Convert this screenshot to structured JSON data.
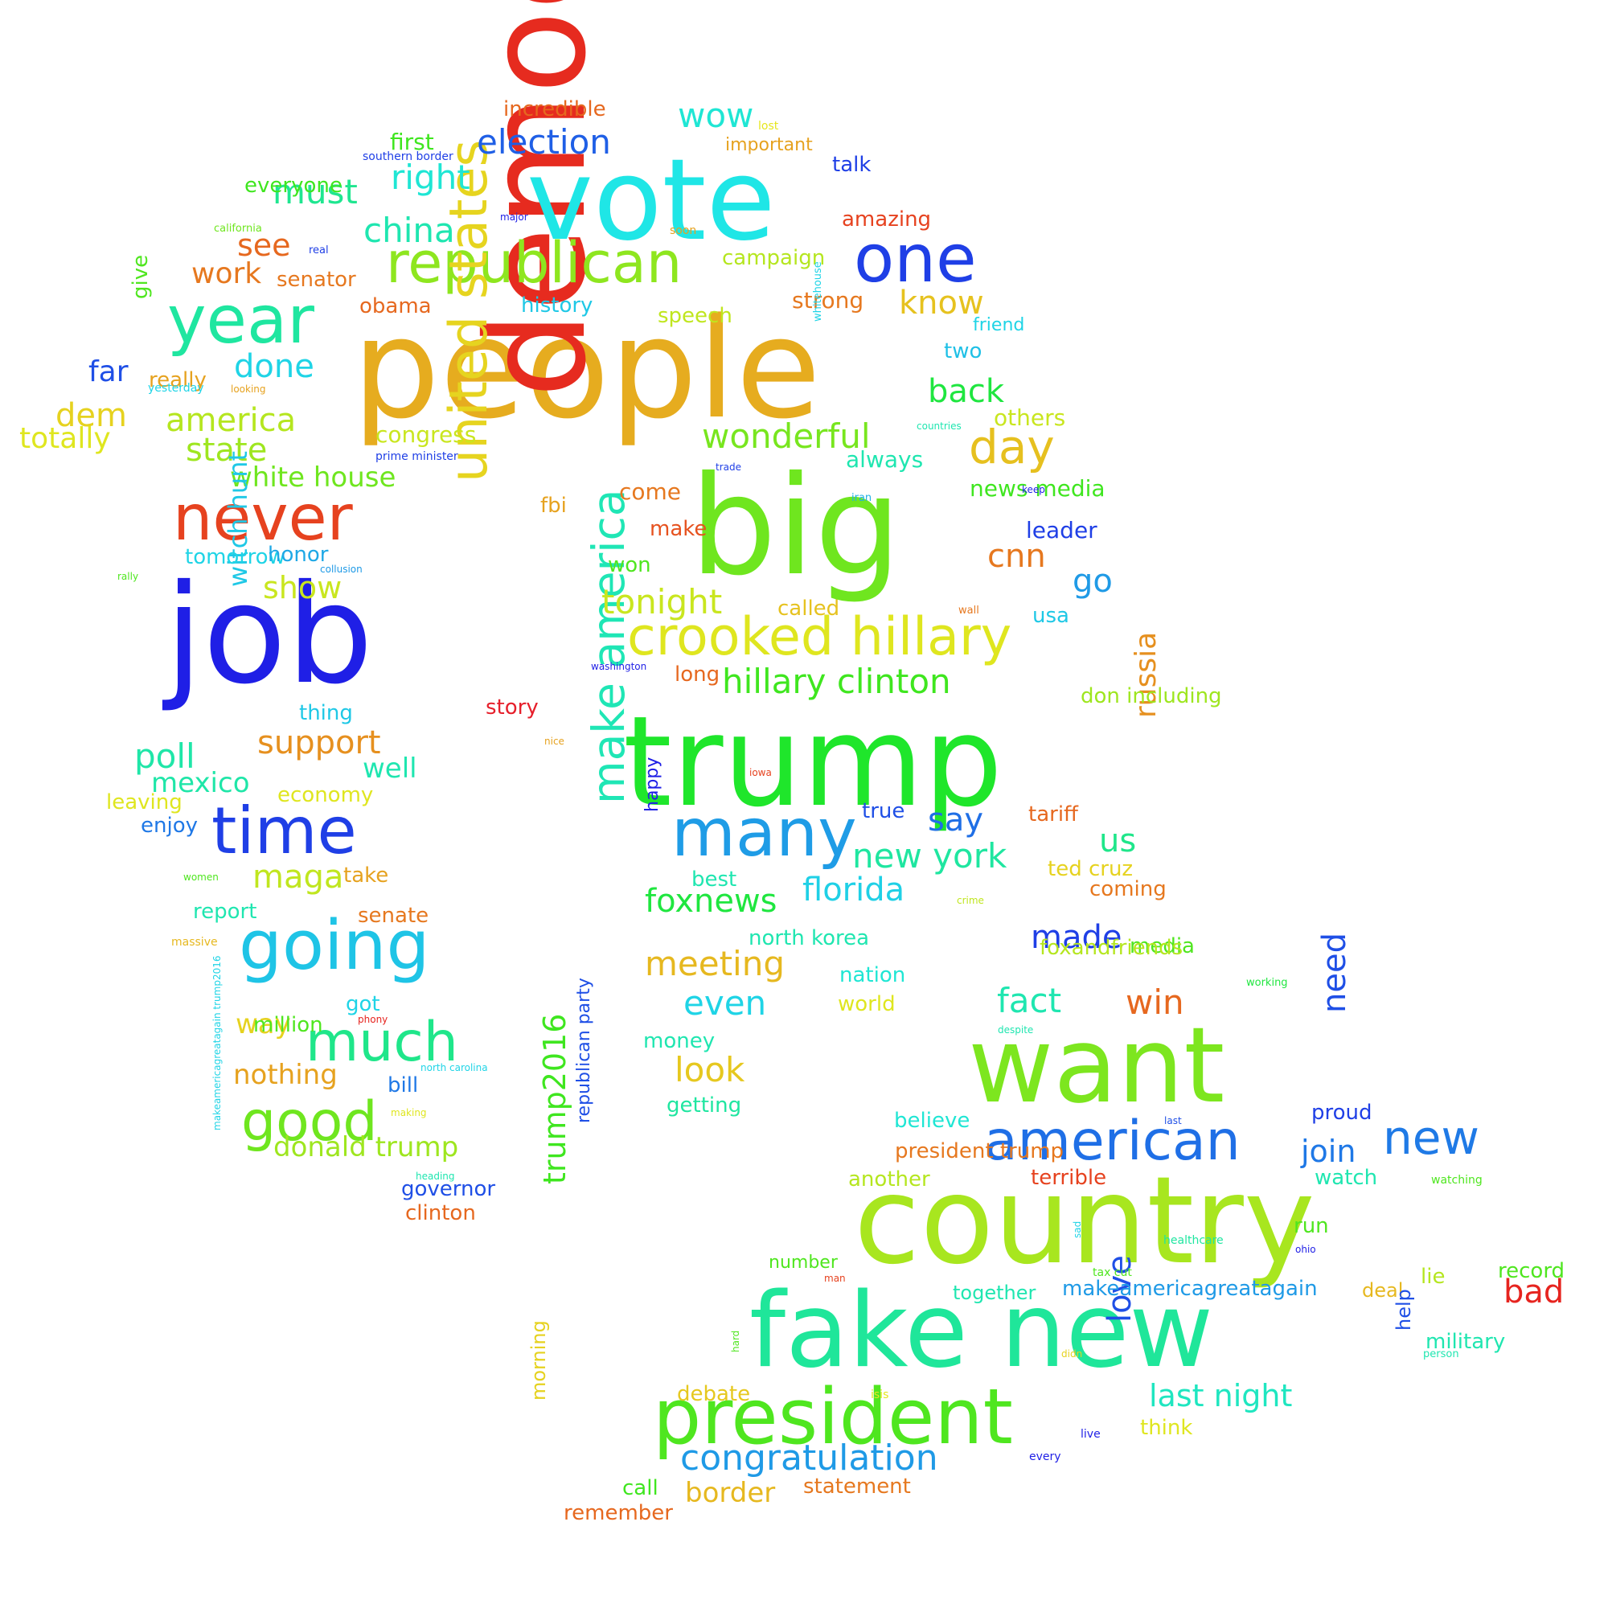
{
  "words": [
    {
      "text": "people",
      "color": "#e6ac1f"
    },
    {
      "text": "democrat",
      "color": "#e62b1f"
    },
    {
      "text": "job",
      "color": "#1f1fe6"
    },
    {
      "text": "big",
      "color": "#6fe61f"
    },
    {
      "text": "trump",
      "color": "#1fe62b"
    },
    {
      "text": "vote",
      "color": "#1fe6e6"
    },
    {
      "text": "country",
      "color": "#a8e61f"
    },
    {
      "text": "want",
      "color": "#7de61f"
    },
    {
      "text": "fake new",
      "color": "#1fe69a"
    },
    {
      "text": "president",
      "color": "#4fe61f"
    },
    {
      "text": "one",
      "color": "#1f3fe6"
    },
    {
      "text": "year",
      "color": "#1fe6a0"
    },
    {
      "text": "republican",
      "color": "#8ee61f"
    },
    {
      "text": "never",
      "color": "#e6421f"
    },
    {
      "text": "time",
      "color": "#1f3fe6"
    },
    {
      "text": "going",
      "color": "#1fc4e6"
    },
    {
      "text": "many",
      "color": "#1f9ce6"
    },
    {
      "text": "united states",
      "color": "#e6d41f"
    },
    {
      "text": "crooked hillary",
      "color": "#dfe61f"
    },
    {
      "text": "make america",
      "color": "#1fe6b5"
    },
    {
      "text": "american",
      "color": "#1f6fe6"
    },
    {
      "text": "new",
      "color": "#1f7ae6"
    },
    {
      "text": "much",
      "color": "#1fe68a"
    },
    {
      "text": "good",
      "color": "#6fe61f"
    },
    {
      "text": "election",
      "color": "#1f5fe6"
    },
    {
      "text": "day",
      "color": "#e6c01f"
    },
    {
      "text": "china",
      "color": "#1fe6b0"
    },
    {
      "text": "wonderful",
      "color": "#78e61f"
    },
    {
      "text": "hillary clinton",
      "color": "#3fe61f"
    },
    {
      "text": "tonight",
      "color": "#c9e61f"
    },
    {
      "text": "congratulation",
      "color": "#1f9ae6"
    },
    {
      "text": "foxnews",
      "color": "#1fe63f"
    },
    {
      "text": "florida",
      "color": "#1fd0e6"
    },
    {
      "text": "new york",
      "color": "#1fe6a0"
    },
    {
      "text": "meeting",
      "color": "#e6b81f"
    },
    {
      "text": "wow",
      "color": "#1fe6d4"
    },
    {
      "text": "right",
      "color": "#1fe6d4"
    },
    {
      "text": "must",
      "color": "#1fe690"
    },
    {
      "text": "america",
      "color": "#b5e61f"
    },
    {
      "text": "state",
      "color": "#9ee61f"
    },
    {
      "text": "white house",
      "color": "#6fe61f"
    },
    {
      "text": "back",
      "color": "#1fe640"
    },
    {
      "text": "know",
      "color": "#e6c21f"
    },
    {
      "text": "done",
      "color": "#1fd4e6"
    },
    {
      "text": "dem",
      "color": "#e6d21f"
    },
    {
      "text": "totally",
      "color": "#dfe61f"
    },
    {
      "text": "see",
      "color": "#e6681f"
    },
    {
      "text": "work",
      "color": "#e6781f"
    },
    {
      "text": "far",
      "color": "#1f4fe6"
    },
    {
      "text": "witch hunt",
      "color": "#1fc8e6"
    },
    {
      "text": "support",
      "color": "#e6901f"
    },
    {
      "text": "poll",
      "color": "#1fe6a8"
    },
    {
      "text": "show",
      "color": "#c9e61f"
    },
    {
      "text": "cnn",
      "color": "#e6781f"
    },
    {
      "text": "go",
      "color": "#1f9ae6"
    },
    {
      "text": "trump2016",
      "color": "#3fe61f"
    },
    {
      "text": "russia",
      "color": "#e6901f"
    },
    {
      "text": "fact",
      "color": "#1fe6b0"
    },
    {
      "text": "win",
      "color": "#e6681f"
    },
    {
      "text": "need",
      "color": "#1f4fe6"
    },
    {
      "text": "love",
      "color": "#1f4fe6"
    },
    {
      "text": "last night",
      "color": "#1fe6c0"
    },
    {
      "text": "even",
      "color": "#1fd4e6"
    },
    {
      "text": "look",
      "color": "#e6c81f"
    },
    {
      "text": "say",
      "color": "#1f6fe6"
    },
    {
      "text": "us",
      "color": "#1fe68a"
    },
    {
      "text": "made",
      "color": "#1f3fe6"
    },
    {
      "text": "join",
      "color": "#1f78e6"
    },
    {
      "text": "bad",
      "color": "#e6241f"
    },
    {
      "text": "maga",
      "color": "#c0e61f"
    },
    {
      "text": "mexico",
      "color": "#1fe6a8"
    },
    {
      "text": "well",
      "color": "#1fe6b0"
    },
    {
      "text": "donald trump",
      "color": "#9ee61f"
    },
    {
      "text": "nothing",
      "color": "#e6a21f"
    },
    {
      "text": "way",
      "color": "#e6d21f"
    },
    {
      "text": "border",
      "color": "#e6b81f"
    },
    {
      "text": "incredible",
      "color": "#e6681f"
    },
    {
      "text": "first",
      "color": "#3fe61f"
    },
    {
      "text": "important",
      "color": "#e6a21f"
    },
    {
      "text": "talk",
      "color": "#1f3fe6"
    },
    {
      "text": "amazing",
      "color": "#e6421f"
    },
    {
      "text": "campaign",
      "color": "#b5e61f"
    },
    {
      "text": "everyone",
      "color": "#3fe61f"
    },
    {
      "text": "senator",
      "color": "#e6781f"
    },
    {
      "text": "obama",
      "color": "#e6681f"
    },
    {
      "text": "history",
      "color": "#1fc8e6"
    },
    {
      "text": "speech",
      "color": "#c0e61f"
    },
    {
      "text": "strong",
      "color": "#e6781f"
    },
    {
      "text": "friend",
      "color": "#1fd4e6"
    },
    {
      "text": "two",
      "color": "#1fc0e6"
    },
    {
      "text": "give",
      "color": "#4fe61f"
    },
    {
      "text": "really",
      "color": "#e6a21f"
    },
    {
      "text": "yesterday",
      "color": "#1fd4e6"
    },
    {
      "text": "congress",
      "color": "#c9e61f"
    },
    {
      "text": "always",
      "color": "#1fe6b0"
    },
    {
      "text": "others",
      "color": "#c9e61f"
    },
    {
      "text": "come",
      "color": "#e6781f"
    },
    {
      "text": "news media",
      "color": "#3fe61f"
    },
    {
      "text": "fbi",
      "color": "#e6a21f"
    },
    {
      "text": "make",
      "color": "#e6521f"
    },
    {
      "text": "leader",
      "color": "#1f3fe6"
    },
    {
      "text": "tomorrow",
      "color": "#1fd4e6"
    },
    {
      "text": "honor",
      "color": "#1fa8e6"
    },
    {
      "text": "won",
      "color": "#4fe61f"
    },
    {
      "text": "called",
      "color": "#e6c21f"
    },
    {
      "text": "usa",
      "color": "#1fc8e6"
    },
    {
      "text": "long",
      "color": "#e6681f"
    },
    {
      "text": "don including",
      "color": "#9ee61f"
    },
    {
      "text": "story",
      "color": "#e61f2b"
    },
    {
      "text": "thing",
      "color": "#1fc8e6"
    },
    {
      "text": "economy",
      "color": "#dfe61f"
    },
    {
      "text": "leaving",
      "color": "#dfe61f"
    },
    {
      "text": "enjoy",
      "color": "#1f78e6"
    },
    {
      "text": "true",
      "color": "#1f4fe6"
    },
    {
      "text": "tariff",
      "color": "#e6681f"
    },
    {
      "text": "happy",
      "color": "#1f1fe6"
    },
    {
      "text": "best",
      "color": "#1fe6b0"
    },
    {
      "text": "ted cruz",
      "color": "#e6d21f"
    },
    {
      "text": "coming",
      "color": "#e6781f"
    },
    {
      "text": "take",
      "color": "#e6a21f"
    },
    {
      "text": "report",
      "color": "#1fe6b0"
    },
    {
      "text": "senate",
      "color": "#e6781f"
    },
    {
      "text": "north korea",
      "color": "#1fe6b0"
    },
    {
      "text": "nation",
      "color": "#1fe6d4"
    },
    {
      "text": "media",
      "color": "#4fe61f"
    },
    {
      "text": "foxandfriends",
      "color": "#b5e61f"
    },
    {
      "text": "world",
      "color": "#dfe61f"
    },
    {
      "text": "got",
      "color": "#1fd4e6"
    },
    {
      "text": "million",
      "color": "#4fe61f"
    },
    {
      "text": "money",
      "color": "#1fe6b0"
    },
    {
      "text": "bill",
      "color": "#1f78e6"
    },
    {
      "text": "getting",
      "color": "#1fe6a0"
    },
    {
      "text": "believe",
      "color": "#1fe6d4"
    },
    {
      "text": "proud",
      "color": "#1f3fe6"
    },
    {
      "text": "president trump",
      "color": "#e6781f"
    },
    {
      "text": "another",
      "color": "#b5e61f"
    },
    {
      "text": "terrible",
      "color": "#e6421f"
    },
    {
      "text": "watch",
      "color": "#1fe6b0"
    },
    {
      "text": "governor",
      "color": "#1f4fe6"
    },
    {
      "text": "clinton",
      "color": "#e6681f"
    },
    {
      "text": "republican party",
      "color": "#1f4fe6"
    },
    {
      "text": "run",
      "color": "#4fe61f"
    },
    {
      "text": "record",
      "color": "#4fe61f"
    },
    {
      "text": "number",
      "color": "#4fe61f"
    },
    {
      "text": "together",
      "color": "#1fe6b0"
    },
    {
      "text": "makeamericagreatagain",
      "color": "#1f9ae6"
    },
    {
      "text": "deal",
      "color": "#e6b81f"
    },
    {
      "text": "lie",
      "color": "#b5e61f"
    },
    {
      "text": "military",
      "color": "#1fe6b0"
    },
    {
      "text": "help",
      "color": "#1f4fe6"
    },
    {
      "text": "think",
      "color": "#dfe61f"
    },
    {
      "text": "debate",
      "color": "#e6c81f"
    },
    {
      "text": "morning",
      "color": "#e6d21f"
    },
    {
      "text": "call",
      "color": "#3fe61f"
    },
    {
      "text": "statement",
      "color": "#e6781f"
    },
    {
      "text": "remember",
      "color": "#e6681f"
    },
    {
      "text": "lost",
      "color": "#e6e61f"
    },
    {
      "text": "southern border",
      "color": "#1f3fe6"
    },
    {
      "text": "major",
      "color": "#1f1fe6"
    },
    {
      "text": "soon",
      "color": "#e6a21f"
    },
    {
      "text": "california",
      "color": "#6fe61f"
    },
    {
      "text": "real",
      "color": "#1f3fe6"
    },
    {
      "text": "whitehouse",
      "color": "#1fd4e6"
    },
    {
      "text": "looking",
      "color": "#e6a21f"
    },
    {
      "text": "countries",
      "color": "#1fe6b0"
    },
    {
      "text": "prime minister",
      "color": "#1f3fe6"
    },
    {
      "text": "trade",
      "color": "#1f3fe6"
    },
    {
      "text": "keep",
      "color": "#1f1fe6"
    },
    {
      "text": "iran",
      "color": "#1fb0e6"
    },
    {
      "text": "rally",
      "color": "#4fe61f"
    },
    {
      "text": "collusion",
      "color": "#1f9ae6"
    },
    {
      "text": "wall",
      "color": "#e6781f"
    },
    {
      "text": "washington",
      "color": "#1f1fe6"
    },
    {
      "text": "nice",
      "color": "#e6a21f"
    },
    {
      "text": "iowa",
      "color": "#e6421f"
    },
    {
      "text": "women",
      "color": "#4fe61f"
    },
    {
      "text": "crime",
      "color": "#c0e61f"
    },
    {
      "text": "massive",
      "color": "#e6b81f"
    },
    {
      "text": "working",
      "color": "#1fe63f"
    },
    {
      "text": "phony",
      "color": "#e6241f"
    },
    {
      "text": "despite",
      "color": "#1fe6b0"
    },
    {
      "text": "makeamericagreatagain trump2016",
      "color": "#1fd4e6"
    },
    {
      "text": "north carolina",
      "color": "#1fd4e6"
    },
    {
      "text": "making",
      "color": "#dfe61f"
    },
    {
      "text": "heading",
      "color": "#1fe6b0"
    },
    {
      "text": "last",
      "color": "#1f4fe6"
    },
    {
      "text": "sad",
      "color": "#1fd4e6"
    },
    {
      "text": "watching",
      "color": "#4fe61f"
    },
    {
      "text": "healthcare",
      "color": "#1fe6a0"
    },
    {
      "text": "ohio",
      "color": "#1f1fe6"
    },
    {
      "text": "tax cut",
      "color": "#4fe61f"
    },
    {
      "text": "man",
      "color": "#e6421f"
    },
    {
      "text": "hard",
      "color": "#4fe61f"
    },
    {
      "text": "didn",
      "color": "#e6d21f"
    },
    {
      "text": "person",
      "color": "#1fe6b0"
    },
    {
      "text": "isis",
      "color": "#e6e61f"
    },
    {
      "text": "live",
      "color": "#1f1fe6"
    },
    {
      "text": "every",
      "color": "#1f1fe6"
    },
    {
      "text": "better",
      "color": "#dfe61f"
    }
  ]
}
